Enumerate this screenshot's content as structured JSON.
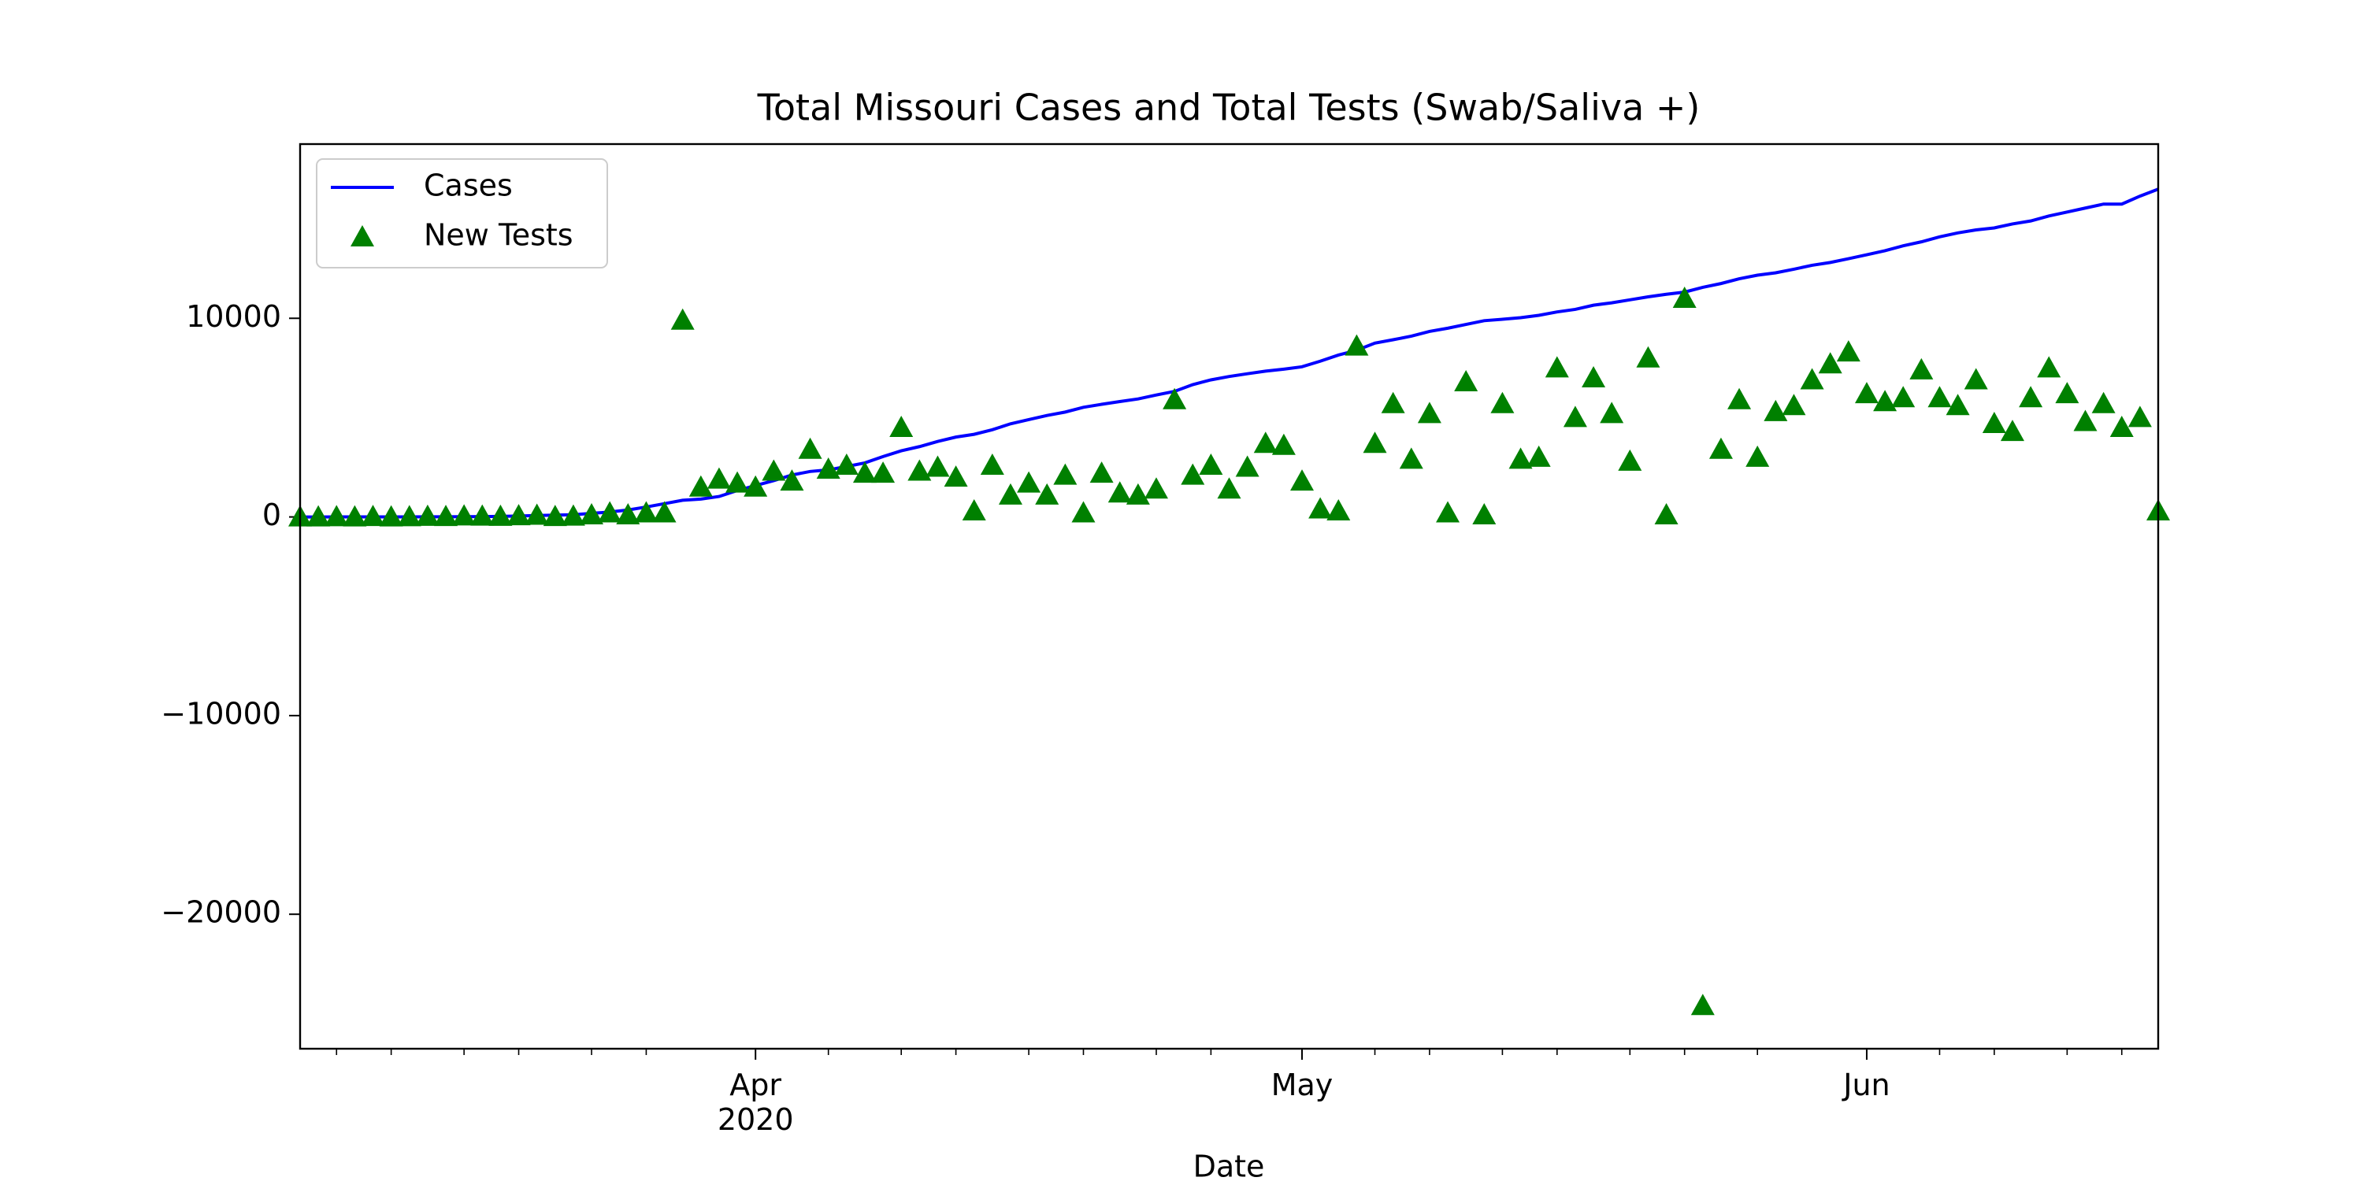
{
  "chart_data": {
    "type": "line",
    "title": "Total Missouri Cases and Total Tests (Swab/Saliva +)",
    "xlabel": "Date",
    "x": [
      "2020-03-07",
      "2020-03-08",
      "2020-03-09",
      "2020-03-10",
      "2020-03-11",
      "2020-03-12",
      "2020-03-13",
      "2020-03-14",
      "2020-03-15",
      "2020-03-16",
      "2020-03-17",
      "2020-03-18",
      "2020-03-19",
      "2020-03-20",
      "2020-03-21",
      "2020-03-22",
      "2020-03-23",
      "2020-03-24",
      "2020-03-25",
      "2020-03-26",
      "2020-03-27",
      "2020-03-28",
      "2020-03-29",
      "2020-03-30",
      "2020-03-31",
      "2020-04-01",
      "2020-04-02",
      "2020-04-03",
      "2020-04-04",
      "2020-04-05",
      "2020-04-06",
      "2020-04-07",
      "2020-04-08",
      "2020-04-09",
      "2020-04-10",
      "2020-04-11",
      "2020-04-12",
      "2020-04-13",
      "2020-04-14",
      "2020-04-15",
      "2020-04-16",
      "2020-04-17",
      "2020-04-18",
      "2020-04-19",
      "2020-04-20",
      "2020-04-21",
      "2020-04-22",
      "2020-04-23",
      "2020-04-24",
      "2020-04-25",
      "2020-04-26",
      "2020-04-27",
      "2020-04-28",
      "2020-04-29",
      "2020-04-30",
      "2020-05-01",
      "2020-05-02",
      "2020-05-03",
      "2020-05-04",
      "2020-05-05",
      "2020-05-06",
      "2020-05-07",
      "2020-05-08",
      "2020-05-09",
      "2020-05-10",
      "2020-05-11",
      "2020-05-12",
      "2020-05-13",
      "2020-05-14",
      "2020-05-15",
      "2020-05-16",
      "2020-05-17",
      "2020-05-18",
      "2020-05-19",
      "2020-05-20",
      "2020-05-21",
      "2020-05-22",
      "2020-05-23",
      "2020-05-24",
      "2020-05-25",
      "2020-05-26",
      "2020-05-27",
      "2020-05-28",
      "2020-05-29",
      "2020-05-30",
      "2020-05-31",
      "2020-06-01",
      "2020-06-02",
      "2020-06-03",
      "2020-06-04",
      "2020-06-05",
      "2020-06-06",
      "2020-06-07",
      "2020-06-08",
      "2020-06-09",
      "2020-06-10",
      "2020-06-11",
      "2020-06-12",
      "2020-06-13",
      "2020-06-14",
      "2020-06-15",
      "2020-06-16",
      "2020-06-17"
    ],
    "series": [
      {
        "name": "Cases",
        "color": "#0000ff",
        "style": "line",
        "values": [
          0,
          0,
          1,
          1,
          2,
          3,
          5,
          8,
          10,
          15,
          20,
          30,
          50,
          70,
          90,
          110,
          180,
          250,
          350,
          500,
          670,
          840,
          900,
          1030,
          1330,
          1580,
          1830,
          2110,
          2290,
          2370,
          2540,
          2720,
          3040,
          3330,
          3540,
          3800,
          4020,
          4160,
          4390,
          4690,
          4900,
          5110,
          5280,
          5520,
          5670,
          5810,
          5940,
          6140,
          6320,
          6660,
          6900,
          7070,
          7210,
          7340,
          7440,
          7560,
          7840,
          8150,
          8390,
          8750,
          8920,
          9100,
          9340,
          9500,
          9690,
          9880,
          9950,
          10030,
          10150,
          10320,
          10450,
          10660,
          10780,
          10930,
          11080,
          11210,
          11320,
          11560,
          11750,
          11990,
          12170,
          12290,
          12470,
          12670,
          12810,
          13000,
          13200,
          13400,
          13650,
          13850,
          14100,
          14300,
          14450,
          14550,
          14750,
          14900,
          15150,
          15350,
          15550,
          15750,
          15750,
          16150,
          16500
        ]
      },
      {
        "name": "New Tests",
        "color": "#008000",
        "style": "triangle",
        "values": [
          0,
          0,
          10,
          0,
          20,
          0,
          10,
          30,
          20,
          50,
          40,
          30,
          60,
          80,
          20,
          40,
          100,
          200,
          100,
          200,
          200,
          9900,
          1500,
          1900,
          1700,
          1500,
          2300,
          1800,
          3400,
          2400,
          2600,
          2200,
          2200,
          4500,
          2300,
          2500,
          2000,
          300,
          2600,
          1100,
          1700,
          1100,
          2100,
          200,
          2200,
          1200,
          1100,
          1400,
          5900,
          2100,
          2600,
          1400,
          2500,
          3700,
          3600,
          1800,
          400,
          300,
          8600,
          3700,
          5700,
          2900,
          5200,
          200,
          6800,
          100,
          5700,
          2900,
          3000,
          7500,
          5000,
          7000,
          5200,
          2800,
          8000,
          100,
          11000,
          -24600,
          3400,
          5900,
          3000,
          5300,
          5600,
          6900,
          7700,
          8300,
          6200,
          5800,
          6000,
          7400,
          6000,
          5600,
          6900,
          4700,
          4300,
          6000,
          7500,
          6200,
          4800,
          5700,
          4500,
          5000,
          300
        ]
      }
    ],
    "xlim": [
      "2020-03-07",
      "2020-06-17"
    ],
    "xticks": [
      {
        "value": "2020-04-01",
        "label": "Apr\n2020"
      },
      {
        "value": "2020-05-01",
        "label": "May"
      },
      {
        "value": "2020-06-01",
        "label": "Jun"
      }
    ],
    "xminorticks": [
      "2020-03-09",
      "2020-03-12",
      "2020-03-16",
      "2020-03-19",
      "2020-03-23",
      "2020-03-26",
      "2020-04-05",
      "2020-04-09",
      "2020-04-12",
      "2020-04-16",
      "2020-04-19",
      "2020-04-23",
      "2020-04-26",
      "2020-05-05",
      "2020-05-08",
      "2020-05-12",
      "2020-05-15",
      "2020-05-19",
      "2020-05-22",
      "2020-05-26",
      "2020-06-05",
      "2020-06-08",
      "2020-06-12",
      "2020-06-15"
    ],
    "ylim": [
      -26770,
      18770
    ],
    "yticks": [
      {
        "value": -20000,
        "label": "−20000"
      },
      {
        "value": -10000,
        "label": "−10000"
      },
      0,
      10000
    ],
    "grid": false,
    "legend": "upper left"
  }
}
